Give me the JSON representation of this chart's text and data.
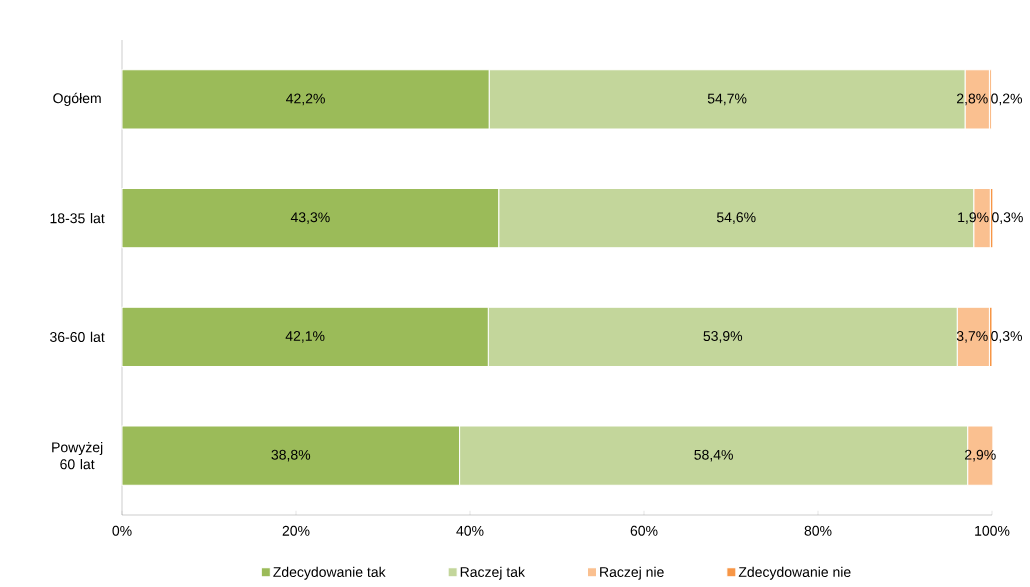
{
  "chart_data": {
    "type": "bar",
    "orientation": "horizontal",
    "stacked": true,
    "categories": [
      "Ogółem",
      "18-35 lat",
      "36-60 lat",
      "Powyżej 60 lat"
    ],
    "xlim": [
      0,
      100
    ],
    "xticks": [
      {
        "value": 0,
        "label": "0%"
      },
      {
        "value": 20,
        "label": "20%"
      },
      {
        "value": 40,
        "label": "40%"
      },
      {
        "value": 60,
        "label": "60%"
      },
      {
        "value": 80,
        "label": "80%"
      },
      {
        "value": 100,
        "label": "100%"
      }
    ],
    "legend": "bottom",
    "series": [
      {
        "name": "Zdecydowanie tak",
        "color": "#9bbb59",
        "values": [
          42.2,
          43.3,
          42.1,
          38.8
        ],
        "value_labels": [
          "42,2%",
          "43,3%",
          "42,1%",
          "38,8%"
        ]
      },
      {
        "name": "Raczej tak",
        "color": "#c3d69b",
        "values": [
          54.7,
          54.6,
          53.9,
          58.4
        ],
        "value_labels": [
          "54,7%",
          "54,6%",
          "53,9%",
          "58,4%"
        ]
      },
      {
        "name": "Raczej nie",
        "color": "#fac090",
        "values": [
          2.8,
          1.9,
          3.7,
          2.9
        ],
        "value_labels": [
          "2,8%",
          "1,9%",
          "3,7%",
          "2,9%"
        ]
      },
      {
        "name": "Zdecydowanie nie",
        "color": "#f79646",
        "values": [
          0.2,
          0.3,
          0.3,
          null
        ],
        "value_labels": [
          "0,2%",
          "0,3%",
          "0,3%",
          null
        ]
      }
    ]
  }
}
